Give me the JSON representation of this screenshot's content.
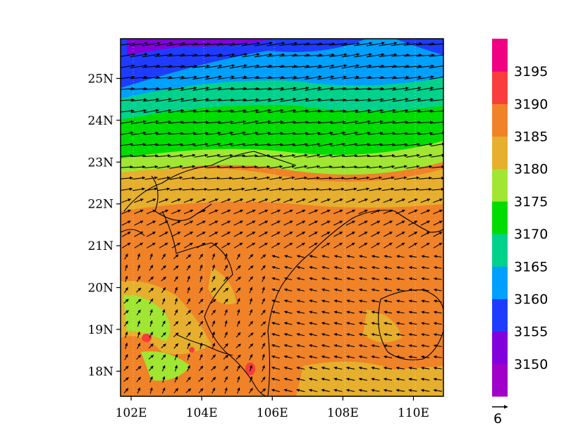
{
  "map": {
    "lon_range": [
      101.7,
      110.85
    ],
    "lat_range": [
      17.4,
      25.95
    ],
    "x_ticks": [
      {
        "value": 102,
        "label": "102E"
      },
      {
        "value": 104,
        "label": "104E"
      },
      {
        "value": 106,
        "label": "106E"
      },
      {
        "value": 108,
        "label": "108E"
      },
      {
        "value": 110,
        "label": "110E"
      }
    ],
    "y_ticks": [
      {
        "value": 18,
        "label": "18N"
      },
      {
        "value": 19,
        "label": "19N"
      },
      {
        "value": 20,
        "label": "20N"
      },
      {
        "value": 21,
        "label": "21N"
      },
      {
        "value": 22,
        "label": "22N"
      },
      {
        "value": 23,
        "label": "23N"
      },
      {
        "value": 24,
        "label": "24N"
      },
      {
        "value": 25,
        "label": "25N"
      }
    ],
    "field": "geopotential height (filled) with wind vectors",
    "colorbar": {
      "levels": [
        3150,
        3155,
        3160,
        3165,
        3170,
        3175,
        3180,
        3185,
        3190,
        3195
      ],
      "labels": [
        "3150",
        "3155",
        "3160",
        "3165",
        "3170",
        "3175",
        "3180",
        "3185",
        "3190",
        "3195"
      ],
      "colors": [
        "#a000c8",
        "#8200dc",
        "#1e3cff",
        "#00a0ff",
        "#00d28c",
        "#00dc00",
        "#a0e632",
        "#e6af2d",
        "#f08228",
        "#fa3c3c",
        "#f00082"
      ]
    },
    "reference_vector": {
      "value": 6,
      "label": "6"
    }
  }
}
